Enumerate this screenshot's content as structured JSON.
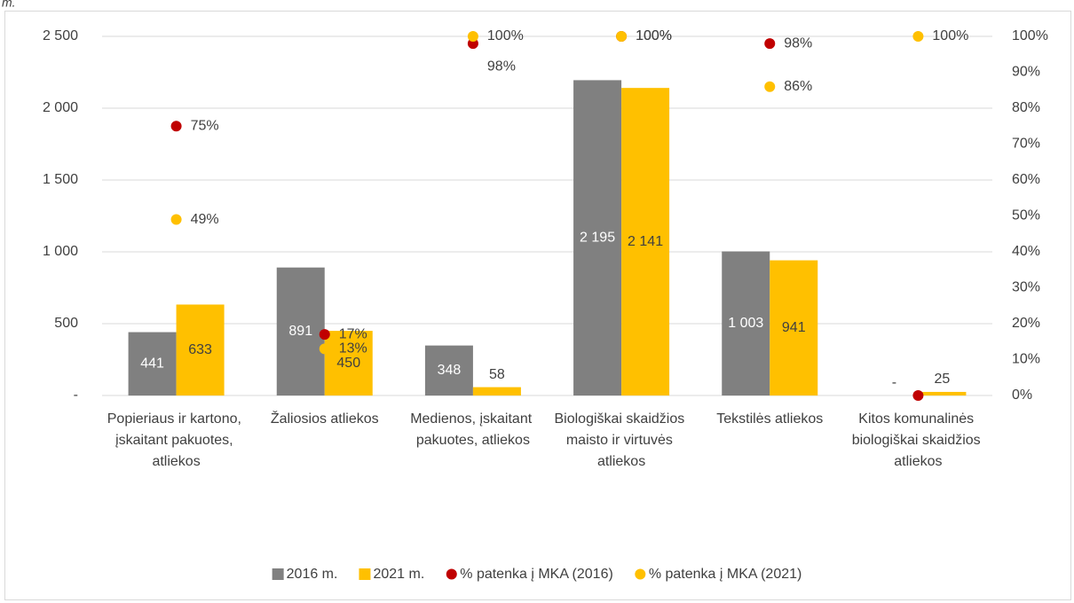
{
  "caption_fragment": "m.",
  "chart_data": {
    "type": "bar",
    "categories": [
      "Popieriaus ir kartono, įskaitant pakuotes, atliekos",
      "Žaliosios atliekos",
      "Medienos, įskaitant pakuotes, atliekos",
      "Biologiškai skaidžios maisto ir virtuvės atliekos",
      "Tekstilės atliekos",
      "Kitos komunalinės biologiškai skaidžios atliekos"
    ],
    "series": [
      {
        "name": "2016 m.",
        "type": "bar",
        "color": "#808080",
        "values": [
          441,
          891,
          348,
          2195,
          1003,
          0
        ],
        "value_labels": [
          "441",
          "891",
          "348",
          "2 195",
          "1 003",
          "-"
        ],
        "label_color": "#ffffff"
      },
      {
        "name": "2021 m.",
        "type": "bar",
        "color": "#ffc000",
        "values": [
          633,
          450,
          58,
          2141,
          941,
          25
        ],
        "value_labels": [
          "633",
          "450",
          "58",
          "2 141",
          "941",
          "25"
        ],
        "label_color": "#404040"
      },
      {
        "name": "% patenka į MKA (2016)",
        "type": "scatter",
        "axis": "y2",
        "color": "#c00000",
        "values": [
          75,
          17,
          98,
          100,
          98,
          0
        ],
        "value_labels": [
          "75%",
          "17%",
          "98%",
          "100%",
          "98%",
          null
        ]
      },
      {
        "name": "% patenka į MKA (2021)",
        "type": "scatter",
        "axis": "y2",
        "color": "#ffc000",
        "values": [
          49,
          13,
          100,
          100,
          86,
          100
        ],
        "value_labels": [
          "49%",
          "13%",
          "100%",
          "100%",
          "86%",
          "100%"
        ]
      }
    ],
    "ylim": [
      0,
      2500
    ],
    "yticks": [
      {
        "value": 0,
        "label": "-"
      },
      500,
      {
        "value": 1000,
        "label": "1 000"
      },
      {
        "value": 1500,
        "label": "1 500"
      },
      {
        "value": 2000,
        "label": "2 000"
      },
      {
        "value": 2500,
        "label": "2 500"
      }
    ],
    "y2lim": [
      0,
      100
    ],
    "y2ticks": [
      {
        "value": 0,
        "label": "0%"
      },
      {
        "value": 10,
        "label": "10%"
      },
      {
        "value": 20,
        "label": "20%"
      },
      {
        "value": 30,
        "label": "30%"
      },
      {
        "value": 40,
        "label": "40%"
      },
      {
        "value": 50,
        "label": "50%"
      },
      {
        "value": 60,
        "label": "60%"
      },
      {
        "value": 70,
        "label": "70%"
      },
      {
        "value": 80,
        "label": "80%"
      },
      {
        "value": 90,
        "label": "90%"
      },
      {
        "value": 100,
        "label": "100%"
      }
    ],
    "grid": true,
    "legend": "bottom"
  }
}
